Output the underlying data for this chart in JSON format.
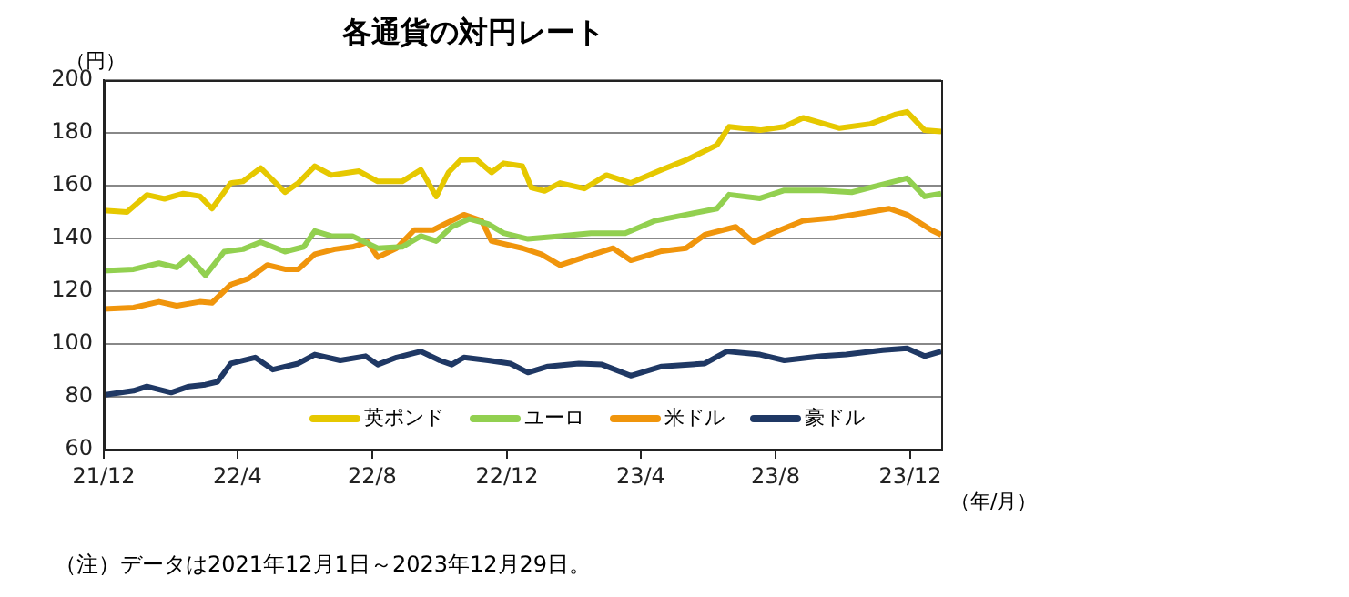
{
  "chart_data": {
    "type": "line",
    "title": "各通貨の対円レート",
    "ylabel": "（円）",
    "xlabel": "（年/月）",
    "annotations": [
      "（注）データは2021年12月1日～2023年12月29日。"
    ],
    "xlim": [
      "2021-12-01",
      "2023-12-29"
    ],
    "xticks": [
      {
        "value": "2021-12-01",
        "label": "21/12"
      },
      {
        "value": "2022-04-01",
        "label": "22/4"
      },
      {
        "value": "2022-08-01",
        "label": "22/8"
      },
      {
        "value": "2022-12-01",
        "label": "22/12"
      },
      {
        "value": "2023-04-01",
        "label": "23/4"
      },
      {
        "value": "2023-08-01",
        "label": "23/8"
      },
      {
        "value": "2023-12-01",
        "label": "23/12"
      }
    ],
    "ylim": [
      60,
      200
    ],
    "yticks": [
      60,
      80,
      100,
      120,
      140,
      160,
      180,
      200
    ],
    "grid": "y",
    "legend": "bottom",
    "marker": "none",
    "line_style": "solid",
    "series": [
      {
        "name": "英ポンド",
        "color": "#e6c800",
        "x": [
          "2021-12-01",
          "2021-12-22",
          "2022-01-09",
          "2022-01-25",
          "2022-02-11",
          "2022-02-26",
          "2022-03-09",
          "2022-03-26",
          "2022-04-06",
          "2022-04-22",
          "2022-05-14",
          "2022-05-26",
          "2022-06-10",
          "2022-06-25",
          "2022-07-20",
          "2022-08-06",
          "2022-08-28",
          "2022-09-14",
          "2022-09-28",
          "2022-10-09",
          "2022-10-20",
          "2022-11-03",
          "2022-11-17",
          "2022-11-28",
          "2022-12-15",
          "2022-12-23",
          "2023-01-04",
          "2023-01-18",
          "2023-02-09",
          "2023-03-01",
          "2023-03-23",
          "2023-04-20",
          "2023-05-12",
          "2023-06-09",
          "2023-06-20",
          "2023-07-18",
          "2023-08-09",
          "2023-08-26",
          "2023-09-28",
          "2023-10-26",
          "2023-11-17",
          "2023-11-28",
          "2023-12-14",
          "2023-12-29"
        ],
        "values": [
          150.6,
          150,
          156.5,
          155,
          157,
          156,
          151.3,
          161,
          161.6,
          166.7,
          157.5,
          161,
          167.4,
          164,
          165.5,
          161.6,
          161.6,
          166,
          155.9,
          165,
          169.7,
          170,
          165,
          168.5,
          167.4,
          159.3,
          158,
          161,
          158.9,
          164,
          161,
          166,
          169.7,
          175.4,
          182.3,
          181,
          182.3,
          185.7,
          181.8,
          183.4,
          186.9,
          188,
          181,
          180.5
        ]
      },
      {
        "name": "ユーロ",
        "color": "#92d050",
        "x": [
          "2021-12-01",
          "2021-12-28",
          "2022-01-20",
          "2022-02-05",
          "2022-02-16",
          "2022-03-03",
          "2022-03-20",
          "2022-04-06",
          "2022-04-22",
          "2022-05-14",
          "2022-05-31",
          "2022-06-10",
          "2022-06-25",
          "2022-07-14",
          "2022-08-06",
          "2022-08-28",
          "2022-09-14",
          "2022-09-28",
          "2022-10-12",
          "2022-10-28",
          "2022-11-14",
          "2022-11-28",
          "2022-12-20",
          "2023-01-18",
          "2023-02-15",
          "2023-03-18",
          "2023-04-14",
          "2023-05-12",
          "2023-06-09",
          "2023-06-20",
          "2023-07-18",
          "2023-08-09",
          "2023-09-12",
          "2023-10-09",
          "2023-11-06",
          "2023-11-28",
          "2023-12-14",
          "2023-12-29"
        ],
        "values": [
          127.8,
          128.3,
          130.6,
          129,
          133,
          126,
          135,
          135.9,
          138.6,
          135,
          136.8,
          142.8,
          140.9,
          140.9,
          136.3,
          136.8,
          140.9,
          139,
          144.4,
          147.4,
          145.5,
          142,
          139.8,
          140.9,
          142,
          142,
          146.7,
          149,
          151.3,
          156.6,
          155.2,
          158.2,
          158.2,
          157.5,
          160.5,
          162.8,
          155.9,
          157
        ]
      },
      {
        "name": "米ドル",
        "color": "#f0950c",
        "x": [
          "2021-12-01",
          "2021-12-28",
          "2022-01-20",
          "2022-02-05",
          "2022-02-26",
          "2022-03-09",
          "2022-03-26",
          "2022-04-11",
          "2022-04-28",
          "2022-05-14",
          "2022-05-26",
          "2022-06-10",
          "2022-06-28",
          "2022-07-14",
          "2022-07-28",
          "2022-08-06",
          "2022-08-23",
          "2022-09-08",
          "2022-09-25",
          "2022-10-06",
          "2022-10-23",
          "2022-11-08",
          "2022-11-17",
          "2022-12-15",
          "2023-01-01",
          "2023-01-18",
          "2023-02-09",
          "2023-03-07",
          "2023-03-23",
          "2023-04-20",
          "2023-05-12",
          "2023-05-29",
          "2023-06-26",
          "2023-07-12",
          "2023-07-29",
          "2023-08-26",
          "2023-09-23",
          "2023-10-26",
          "2023-11-12",
          "2023-11-28",
          "2023-12-20",
          "2023-12-29"
        ],
        "values": [
          113.3,
          113.8,
          116,
          114.5,
          116,
          115.6,
          122.5,
          124.8,
          129.9,
          128.3,
          128.3,
          134,
          135.9,
          136.8,
          138.6,
          132.9,
          136.3,
          143.2,
          143.2,
          145.5,
          149,
          146.7,
          139,
          136.3,
          134,
          129.9,
          132.9,
          136.3,
          131.7,
          135.2,
          136.3,
          141.4,
          144.4,
          138.6,
          142,
          146.7,
          147.8,
          150.1,
          151.3,
          149,
          143.2,
          141.4
        ]
      },
      {
        "name": "豪ドル",
        "color": "#1f3864",
        "x": [
          "2021-12-01",
          "2021-12-28",
          "2022-01-09",
          "2022-01-31",
          "2022-02-16",
          "2022-03-03",
          "2022-03-14",
          "2022-03-26",
          "2022-04-17",
          "2022-05-03",
          "2022-05-26",
          "2022-06-10",
          "2022-07-03",
          "2022-07-26",
          "2022-08-06",
          "2022-08-23",
          "2022-09-14",
          "2022-10-01",
          "2022-10-12",
          "2022-10-23",
          "2022-11-14",
          "2022-12-04",
          "2022-12-20",
          "2023-01-07",
          "2023-02-04",
          "2023-02-25",
          "2023-03-23",
          "2023-04-20",
          "2023-05-29",
          "2023-06-18",
          "2023-07-18",
          "2023-08-09",
          "2023-09-12",
          "2023-10-04",
          "2023-11-06",
          "2023-11-28",
          "2023-12-14",
          "2023-12-29"
        ],
        "values": [
          80.7,
          82.3,
          83.9,
          81.6,
          83.9,
          84.6,
          85.7,
          92.6,
          94.9,
          90.3,
          92.6,
          96,
          93.8,
          95.4,
          92.2,
          94.9,
          97.2,
          93.8,
          92.2,
          94.9,
          93.8,
          92.6,
          89.2,
          91.5,
          92.6,
          92.2,
          88,
          91.5,
          92.6,
          97.2,
          96,
          93.8,
          95.4,
          96,
          97.7,
          98.4,
          95.4,
          97.2
        ]
      }
    ]
  }
}
